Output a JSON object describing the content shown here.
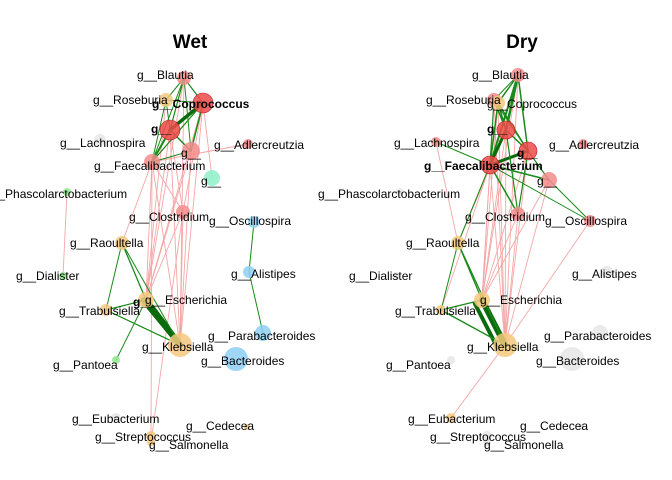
{
  "colors": {
    "red": "#f04a4a",
    "pink": "#f48b8b",
    "orange": "#f4c87e",
    "blue": "#8ecff4",
    "mint": "#8ef0c8",
    "green_node": "#90e890",
    "grey": "#e6e6e6",
    "edge_pos": "#1a8a1a",
    "edge_pos_strong": "#0b6a0b",
    "edge_neg": "#f4a6a6"
  },
  "panels": [
    {
      "title": "Wet",
      "nodes": [
        {
          "id": "blautia",
          "label": "g__Blautia",
          "color": "pink"
        },
        {
          "id": "roseburia",
          "label": "g__Roseburia",
          "color": "orange"
        },
        {
          "id": "coprococcus",
          "label": "g__Coprococcus",
          "color": "red",
          "bold": true
        },
        {
          "id": "g_red1",
          "label": "g__",
          "color": "red",
          "bold": true
        },
        {
          "id": "lachnospira",
          "label": "g__Lachnospira",
          "color": "grey"
        },
        {
          "id": "g_pink2",
          "label": "g__",
          "color": "pink"
        },
        {
          "id": "adlercreutzia",
          "label": "g__Adlercreutzia",
          "color": "pink"
        },
        {
          "id": "faecalibacterium",
          "label": "g__Faecalibacterium",
          "color": "pink"
        },
        {
          "id": "g_mint",
          "label": "g__",
          "color": "mint"
        },
        {
          "id": "phascolarctobacterium",
          "label": "g__Phascolarctobacterium",
          "color": "green_node"
        },
        {
          "id": "clostridium",
          "label": "g__Clostridium",
          "color": "pink"
        },
        {
          "id": "oscillospira",
          "label": "g__Oscillospira",
          "color": "blue"
        },
        {
          "id": "raoultella",
          "label": "g__Raoultella",
          "color": "orange"
        },
        {
          "id": "alistipes",
          "label": "g__Alistipes",
          "color": "blue"
        },
        {
          "id": "dialister",
          "label": "g__Dialister",
          "color": "green_node"
        },
        {
          "id": "escherichia",
          "label": "g__Escherichia",
          "color": "orange"
        },
        {
          "id": "g_esch",
          "label": "g__",
          "color": "orange",
          "bold": true
        },
        {
          "id": "trabulsiella",
          "label": "g__Trabulsiella",
          "color": "orange"
        },
        {
          "id": "parabacteroides",
          "label": "g__Parabacteroides",
          "color": "blue"
        },
        {
          "id": "klebsiella",
          "label": "g__Klebsiella",
          "color": "orange"
        },
        {
          "id": "pantoea",
          "label": "g__Pantoea",
          "color": "green_node"
        },
        {
          "id": "bacteroides",
          "label": "g__Bacteroides",
          "color": "blue"
        },
        {
          "id": "eubacterium",
          "label": "g__Eubacterium",
          "color": "grey"
        },
        {
          "id": "cedecea",
          "label": "g__Cedecea",
          "color": "orange"
        },
        {
          "id": "streptococcus",
          "label": "g__Streptococcus",
          "color": "orange"
        },
        {
          "id": "salmonella",
          "label": "g__Salmonella",
          "color": "orange"
        }
      ],
      "edges": [
        {
          "a": "blautia",
          "b": "coprococcus",
          "type": "pos",
          "weight": 1.2
        },
        {
          "a": "blautia",
          "b": "g_red1",
          "type": "pos",
          "weight": 1.2
        },
        {
          "a": "blautia",
          "b": "faecalibacterium",
          "type": "pos",
          "weight": 1
        },
        {
          "a": "blautia",
          "b": "g_pink2",
          "type": "pos",
          "weight": 1
        },
        {
          "a": "blautia",
          "b": "roseburia",
          "type": "pos",
          "weight": 1
        },
        {
          "a": "roseburia",
          "b": "coprococcus",
          "type": "pos",
          "weight": 1
        },
        {
          "a": "roseburia",
          "b": "g_red1",
          "type": "pos",
          "weight": 1
        },
        {
          "a": "roseburia",
          "b": "faecalibacterium",
          "type": "pos",
          "weight": 1
        },
        {
          "a": "coprococcus",
          "b": "g_red1",
          "type": "pos",
          "weight": 3.5
        },
        {
          "a": "coprococcus",
          "b": "g_pink2",
          "type": "pos",
          "weight": 1.5
        },
        {
          "a": "coprococcus",
          "b": "faecalibacterium",
          "type": "pos",
          "weight": 1.2
        },
        {
          "a": "g_red1",
          "b": "faecalibacterium",
          "type": "pos",
          "weight": 2
        },
        {
          "a": "g_red1",
          "b": "g_pink2",
          "type": "pos",
          "weight": 1.5
        },
        {
          "a": "faecalibacterium",
          "b": "g_pink2",
          "type": "pos",
          "weight": 1
        },
        {
          "a": "coprococcus",
          "b": "g_mint",
          "type": "neg",
          "weight": 1
        },
        {
          "a": "adlercreutzia",
          "b": "faecalibacterium",
          "type": "neg",
          "weight": 1
        },
        {
          "a": "faecalibacterium",
          "b": "clostridium",
          "type": "neg",
          "weight": 1
        },
        {
          "a": "g_red1",
          "b": "clostridium",
          "type": "neg",
          "weight": 1
        },
        {
          "a": "coprococcus",
          "b": "clostridium",
          "type": "neg",
          "weight": 1
        },
        {
          "a": "phascolarctobacterium",
          "b": "dialister",
          "type": "neg",
          "weight": 1
        },
        {
          "a": "faecalibacterium",
          "b": "raoultella",
          "type": "neg",
          "weight": 1
        },
        {
          "a": "faecalibacterium",
          "b": "escherichia",
          "type": "neg",
          "weight": 1
        },
        {
          "a": "faecalibacterium",
          "b": "klebsiella",
          "type": "neg",
          "weight": 1
        },
        {
          "a": "faecalibacterium",
          "b": "streptococcus",
          "type": "neg",
          "weight": 1
        },
        {
          "a": "g_red1",
          "b": "escherichia",
          "type": "neg",
          "weight": 1
        },
        {
          "a": "g_red1",
          "b": "klebsiella",
          "type": "neg",
          "weight": 1
        },
        {
          "a": "coprococcus",
          "b": "escherichia",
          "type": "neg",
          "weight": 1
        },
        {
          "a": "coprococcus",
          "b": "klebsiella",
          "type": "neg",
          "weight": 1
        },
        {
          "a": "g_pink2",
          "b": "escherichia",
          "type": "neg",
          "weight": 1
        },
        {
          "a": "g_pink2",
          "b": "klebsiella",
          "type": "neg",
          "weight": 1
        },
        {
          "a": "clostridium",
          "b": "escherichia",
          "type": "neg",
          "weight": 1
        },
        {
          "a": "clostridium",
          "b": "klebsiella",
          "type": "neg",
          "weight": 1
        },
        {
          "a": "blautia",
          "b": "escherichia",
          "type": "neg",
          "weight": 1
        },
        {
          "a": "blautia",
          "b": "klebsiella",
          "type": "neg",
          "weight": 1
        },
        {
          "a": "roseburia",
          "b": "escherichia",
          "type": "neg",
          "weight": 1
        },
        {
          "a": "clostridium",
          "b": "salmonella",
          "type": "neg",
          "weight": 1
        },
        {
          "a": "oscillospira",
          "b": "alistipes",
          "type": "pos",
          "weight": 1
        },
        {
          "a": "alistipes",
          "b": "parabacteroides",
          "type": "pos",
          "weight": 1
        },
        {
          "a": "escherichia",
          "b": "klebsiella",
          "type": "pos",
          "weight": 6
        },
        {
          "a": "g_esch",
          "b": "klebsiella",
          "type": "pos",
          "weight": 5
        },
        {
          "a": "escherichia",
          "b": "raoultella",
          "type": "pos",
          "weight": 1.3
        },
        {
          "a": "escherichia",
          "b": "trabulsiella",
          "type": "pos",
          "weight": 1.3
        },
        {
          "a": "raoultella",
          "b": "trabulsiella",
          "type": "pos",
          "weight": 1
        },
        {
          "a": "raoultella",
          "b": "klebsiella",
          "type": "pos",
          "weight": 1
        },
        {
          "a": "trabulsiella",
          "b": "klebsiella",
          "type": "pos",
          "weight": 1
        },
        {
          "a": "escherichia",
          "b": "pantoea",
          "type": "pos",
          "weight": 1
        },
        {
          "a": "klebsiella",
          "b": "trabulsiella",
          "type": "pos",
          "weight": 1
        }
      ]
    },
    {
      "title": "Dry",
      "nodes": [
        {
          "id": "blautia",
          "label": "g__Blautia",
          "color": "pink"
        },
        {
          "id": "roseburia",
          "label": "g__Roseburia",
          "color": "pink"
        },
        {
          "id": "coprococcus",
          "label": "g__Coprococcus",
          "color": "orange"
        },
        {
          "id": "g_red1",
          "label": "g__",
          "color": "red",
          "bold": true
        },
        {
          "id": "lachnospira",
          "label": "g__Lachnospira",
          "color": "pink"
        },
        {
          "id": "g_red2",
          "label": "g__",
          "color": "red",
          "bold": true
        },
        {
          "id": "adlercreutzia",
          "label": "g__Adlercreutzia",
          "color": "pink"
        },
        {
          "id": "faecalibacterium",
          "label": "g__Faecalibacterium",
          "color": "red",
          "bold": true
        },
        {
          "id": "g_pink3",
          "label": "g__",
          "color": "pink"
        },
        {
          "id": "phascolarctobacterium",
          "label": "g__Phascolarctobacterium",
          "color": "grey"
        },
        {
          "id": "clostridium",
          "label": "g__Clostridium",
          "color": "pink"
        },
        {
          "id": "oscillospira",
          "label": "g__Oscillospira",
          "color": "pink"
        },
        {
          "id": "raoultella",
          "label": "g__Raoultella",
          "color": "orange"
        },
        {
          "id": "alistipes",
          "label": "g__Alistipes",
          "color": "grey"
        },
        {
          "id": "dialister",
          "label": "g__Dialister",
          "color": "grey"
        },
        {
          "id": "escherichia",
          "label": "g__Escherichia",
          "color": "orange"
        },
        {
          "id": "trabulsiella",
          "label": "g__Trabulsiella",
          "color": "orange"
        },
        {
          "id": "parabacteroides",
          "label": "g__Parabacteroides",
          "color": "grey"
        },
        {
          "id": "klebsiella",
          "label": "g__Klebsiella",
          "color": "orange"
        },
        {
          "id": "pantoea",
          "label": "g__Pantoea",
          "color": "grey"
        },
        {
          "id": "bacteroides",
          "label": "g__Bacteroides",
          "color": "grey"
        },
        {
          "id": "eubacterium",
          "label": "g__Eubacterium",
          "color": "orange"
        },
        {
          "id": "cedecea",
          "label": "g__Cedecea",
          "color": "grey"
        },
        {
          "id": "streptococcus",
          "label": "g__Streptococcus",
          "color": "grey"
        },
        {
          "id": "salmonella",
          "label": "g__Salmonella",
          "color": "grey"
        }
      ],
      "edges": [
        {
          "a": "blautia",
          "b": "g_red1",
          "type": "pos",
          "weight": 2.5
        },
        {
          "a": "blautia",
          "b": "coprococcus",
          "type": "pos",
          "weight": 1.5
        },
        {
          "a": "blautia",
          "b": "faecalibacterium",
          "type": "pos",
          "weight": 2
        },
        {
          "a": "blautia",
          "b": "roseburia",
          "type": "pos",
          "weight": 1
        },
        {
          "a": "blautia",
          "b": "g_red2",
          "type": "pos",
          "weight": 1.5
        },
        {
          "a": "roseburia",
          "b": "coprococcus",
          "type": "pos",
          "weight": 1.2
        },
        {
          "a": "roseburia",
          "b": "g_red1",
          "type": "pos",
          "weight": 1.5
        },
        {
          "a": "roseburia",
          "b": "faecalibacterium",
          "type": "pos",
          "weight": 1.2
        },
        {
          "a": "roseburia",
          "b": "g_red2",
          "type": "pos",
          "weight": 1
        },
        {
          "a": "coprococcus",
          "b": "g_red1",
          "type": "pos",
          "weight": 1.5
        },
        {
          "a": "coprococcus",
          "b": "g_red2",
          "type": "pos",
          "weight": 1.5
        },
        {
          "a": "coprococcus",
          "b": "faecalibacterium",
          "type": "pos",
          "weight": 1.5
        },
        {
          "a": "g_red1",
          "b": "faecalibacterium",
          "type": "pos",
          "weight": 3
        },
        {
          "a": "g_red2",
          "b": "faecalibacterium",
          "type": "pos",
          "weight": 3
        },
        {
          "a": "g_red1",
          "b": "g_red2",
          "type": "pos",
          "weight": 1.5
        },
        {
          "a": "lachnospira",
          "b": "faecalibacterium",
          "type": "pos",
          "weight": 1
        },
        {
          "a": "faecalibacterium",
          "b": "g_pink3",
          "type": "pos",
          "weight": 1.5
        },
        {
          "a": "g_red2",
          "b": "g_pink3",
          "type": "pos",
          "weight": 1.2
        },
        {
          "a": "faecalibacterium",
          "b": "clostridium",
          "type": "pos",
          "weight": 1.5
        },
        {
          "a": "g_red1",
          "b": "clostridium",
          "type": "pos",
          "weight": 1.2
        },
        {
          "a": "g_red2",
          "b": "clostridium",
          "type": "pos",
          "weight": 1.2
        },
        {
          "a": "g_pink3",
          "b": "oscillospira",
          "type": "pos",
          "weight": 1
        },
        {
          "a": "faecalibacterium",
          "b": "oscillospira",
          "type": "pos",
          "weight": 1
        },
        {
          "a": "faecalibacterium",
          "b": "raoultella",
          "type": "neg",
          "weight": 1
        },
        {
          "a": "faecalibacterium",
          "b": "escherichia",
          "type": "neg",
          "weight": 1
        },
        {
          "a": "faecalibacterium",
          "b": "klebsiella",
          "type": "neg",
          "weight": 1
        },
        {
          "a": "faecalibacterium",
          "b": "trabulsiella",
          "type": "neg",
          "weight": 1
        },
        {
          "a": "g_red1",
          "b": "escherichia",
          "type": "neg",
          "weight": 1
        },
        {
          "a": "g_red1",
          "b": "klebsiella",
          "type": "neg",
          "weight": 1
        },
        {
          "a": "g_red1",
          "b": "raoultella",
          "type": "neg",
          "weight": 1
        },
        {
          "a": "g_red2",
          "b": "escherichia",
          "type": "neg",
          "weight": 1
        },
        {
          "a": "g_red2",
          "b": "klebsiella",
          "type": "neg",
          "weight": 1
        },
        {
          "a": "clostridium",
          "b": "escherichia",
          "type": "neg",
          "weight": 1
        },
        {
          "a": "clostridium",
          "b": "klebsiella",
          "type": "neg",
          "weight": 1
        },
        {
          "a": "blautia",
          "b": "escherichia",
          "type": "neg",
          "weight": 1
        },
        {
          "a": "blautia",
          "b": "klebsiella",
          "type": "neg",
          "weight": 1
        },
        {
          "a": "roseburia",
          "b": "escherichia",
          "type": "neg",
          "weight": 1
        },
        {
          "a": "roseburia",
          "b": "klebsiella",
          "type": "neg",
          "weight": 1
        },
        {
          "a": "coprococcus",
          "b": "escherichia",
          "type": "neg",
          "weight": 1
        },
        {
          "a": "coprococcus",
          "b": "klebsiella",
          "type": "neg",
          "weight": 1
        },
        {
          "a": "g_pink3",
          "b": "escherichia",
          "type": "neg",
          "weight": 1
        },
        {
          "a": "g_pink3",
          "b": "klebsiella",
          "type": "neg",
          "weight": 1
        },
        {
          "a": "lachnospira",
          "b": "raoultella",
          "type": "neg",
          "weight": 1
        },
        {
          "a": "oscillospira",
          "b": "klebsiella",
          "type": "neg",
          "weight": 1
        },
        {
          "a": "klebsiella",
          "b": "eubacterium",
          "type": "neg",
          "weight": 1
        },
        {
          "a": "escherichia",
          "b": "klebsiella",
          "type": "pos",
          "weight": 6
        },
        {
          "a": "escherichia",
          "b": "klebsiella",
          "type": "pos",
          "weight": 4,
          "offset": 8
        },
        {
          "a": "escherichia",
          "b": "raoultella",
          "type": "pos",
          "weight": 1.3
        },
        {
          "a": "escherichia",
          "b": "trabulsiella",
          "type": "pos",
          "weight": 1.3
        },
        {
          "a": "raoultella",
          "b": "trabulsiella",
          "type": "pos",
          "weight": 1
        },
        {
          "a": "raoultella",
          "b": "klebsiella",
          "type": "pos",
          "weight": 1.3
        },
        {
          "a": "trabulsiella",
          "b": "klebsiella",
          "type": "pos",
          "weight": 1.3
        },
        {
          "a": "raoultella",
          "b": "faecalibacterium",
          "type": "pos",
          "weight": 1
        }
      ]
    }
  ]
}
